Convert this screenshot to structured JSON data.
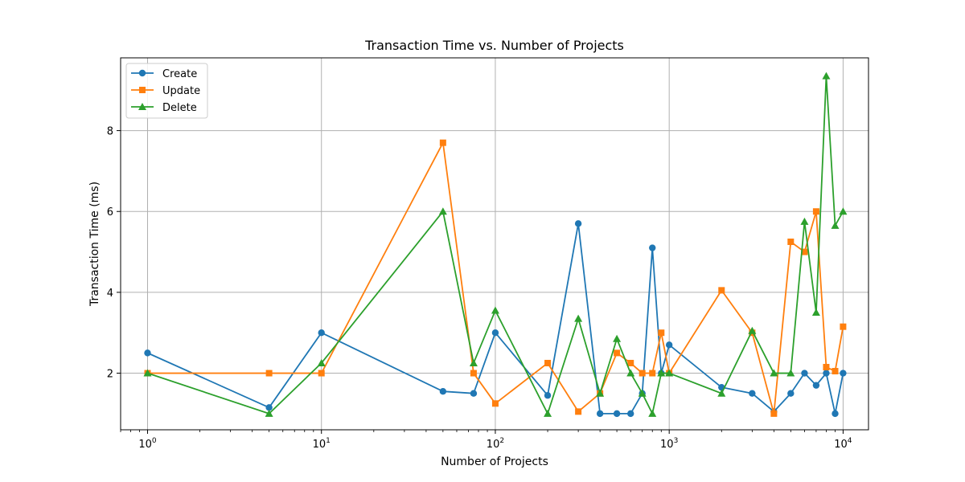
{
  "chart_data": {
    "type": "line",
    "title": "Transaction Time vs. Number of Projects",
    "xlabel": "Number of Projects",
    "ylabel": "Transaction Time (ms)",
    "x_scale": "log",
    "xlim": [
      0.7,
      14000
    ],
    "ylim": [
      0.6,
      9.8
    ],
    "grid": true,
    "legend_placement": "top-left",
    "x_ticks": [
      {
        "value": 1,
        "base": "10",
        "exp": "0"
      },
      {
        "value": 10,
        "base": "10",
        "exp": "1"
      },
      {
        "value": 100,
        "base": "10",
        "exp": "2"
      },
      {
        "value": 1000,
        "base": "10",
        "exp": "3"
      },
      {
        "value": 10000,
        "base": "10",
        "exp": "4"
      }
    ],
    "y_ticks": [
      2,
      4,
      6,
      8
    ],
    "x": [
      1,
      5,
      10,
      50,
      75,
      100,
      200,
      300,
      400,
      500,
      600,
      700,
      800,
      900,
      1000,
      2000,
      3000,
      4000,
      5000,
      6000,
      7000,
      8000,
      9000,
      10000
    ],
    "series": [
      {
        "name": "Create",
        "color": "#1f77b4",
        "marker": "circle",
        "values": [
          2.5,
          1.15,
          3.0,
          1.55,
          1.5,
          3.0,
          1.45,
          5.7,
          1.0,
          1.0,
          1.0,
          1.5,
          5.1,
          2.0,
          2.7,
          1.65,
          1.5,
          1.05,
          1.5,
          2.0,
          1.7,
          2.0,
          1.0,
          2.0
        ]
      },
      {
        "name": "Update",
        "color": "#ff7f0e",
        "marker": "square",
        "values": [
          2.0,
          2.0,
          2.0,
          7.7,
          2.0,
          1.25,
          2.25,
          1.05,
          1.5,
          2.5,
          2.25,
          2.0,
          2.0,
          3.0,
          2.0,
          4.05,
          3.0,
          1.0,
          5.25,
          5.0,
          6.0,
          2.15,
          2.05,
          3.15
        ]
      },
      {
        "name": "Delete",
        "color": "#2ca02c",
        "marker": "triangle",
        "values": [
          2.0,
          1.0,
          2.25,
          6.0,
          2.25,
          3.55,
          1.0,
          3.35,
          1.5,
          2.85,
          2.0,
          1.5,
          1.0,
          2.0,
          2.0,
          1.5,
          3.05,
          2.0,
          2.0,
          5.75,
          3.5,
          9.35,
          5.65,
          6.0
        ]
      }
    ]
  }
}
